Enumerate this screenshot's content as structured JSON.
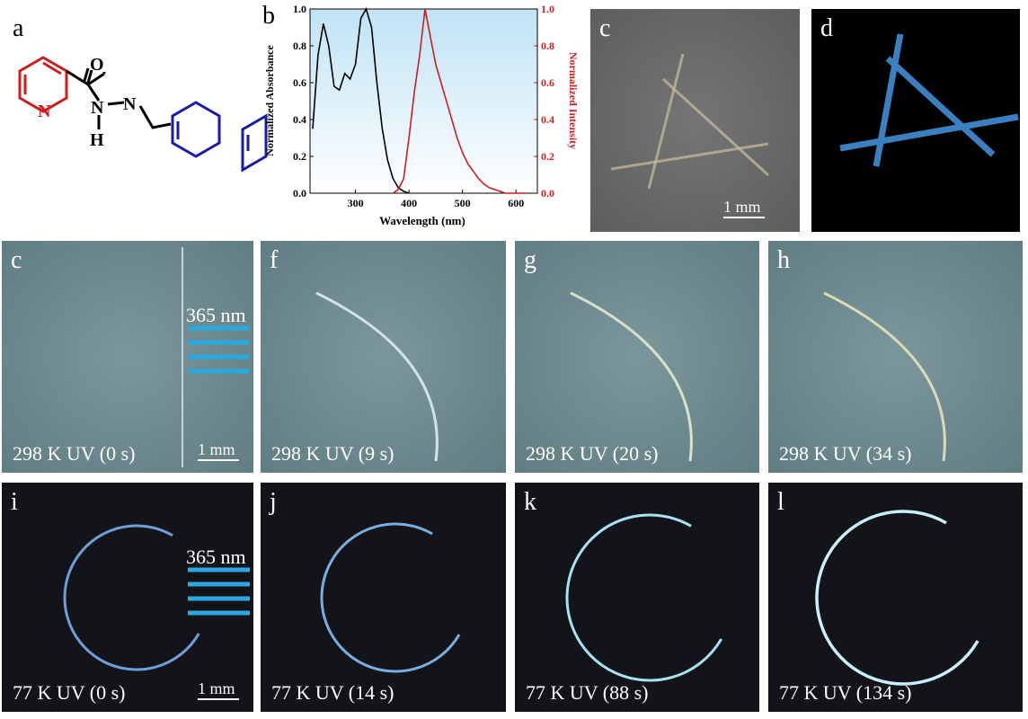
{
  "structure": {
    "label": "a",
    "atoms": [
      "N",
      "O",
      "N",
      "H",
      "N"
    ]
  },
  "chart_data": {
    "type": "line",
    "label": "b",
    "xlabel": "Wavelength (nm)",
    "ylabel": "Normalized Absorbance",
    "y2label": "Normalized Intensity",
    "x": [
      220,
      230,
      240,
      250,
      260,
      270,
      280,
      290,
      300,
      310,
      320,
      330,
      340,
      350,
      360,
      370,
      380,
      390,
      400,
      410,
      420,
      430,
      440,
      450,
      460,
      470,
      480,
      490,
      500,
      510,
      520,
      530,
      540,
      550,
      560,
      570,
      580,
      590,
      600,
      610,
      620
    ],
    "series": [
      {
        "color": "#000000",
        "values": [
          0.35,
          0.75,
          0.92,
          0.8,
          0.58,
          0.56,
          0.65,
          0.62,
          0.7,
          0.95,
          1.0,
          0.9,
          0.6,
          0.35,
          0.18,
          0.08,
          0.03,
          0.01,
          0,
          null,
          null,
          null,
          null,
          null,
          null,
          null,
          null,
          null,
          null,
          null,
          null,
          null,
          null,
          null,
          null,
          null,
          null,
          null,
          null,
          null,
          null
        ]
      },
      {
        "color": "#cc1f1f",
        "axis": "y2",
        "values": [
          null,
          null,
          null,
          null,
          null,
          null,
          null,
          null,
          null,
          null,
          null,
          null,
          null,
          null,
          null,
          0,
          0.02,
          0.08,
          0.3,
          0.55,
          0.75,
          1.0,
          0.85,
          0.7,
          0.6,
          0.5,
          0.4,
          0.3,
          0.22,
          0.16,
          0.12,
          0.08,
          0.05,
          0.03,
          0.02,
          0.01,
          0,
          0,
          0,
          0,
          0
        ]
      }
    ],
    "xlim": [
      215,
      640
    ],
    "xticks": [
      300,
      400,
      500,
      600
    ],
    "ylim": [
      0,
      1
    ],
    "yticks": [
      {
        "value": 0,
        "label": "0.0"
      },
      0.2,
      0.4,
      0.6,
      0.8,
      {
        "value": 1,
        "label": "1.0"
      }
    ],
    "y2lim": [
      0,
      1
    ],
    "y2ticks": [
      {
        "value": 0,
        "label": "0.0"
      },
      0.2,
      0.4,
      0.6,
      0.8,
      {
        "value": 1,
        "label": "1.0"
      }
    ]
  },
  "photos": [
    {
      "label": "c",
      "scale": "1 mm"
    },
    {
      "label": "d"
    },
    {
      "label": "c",
      "caption": "298 K UV (0 s)",
      "excitation": "365 nm",
      "scale": "1 mm"
    },
    {
      "label": "f",
      "caption": "298 K UV (9 s)"
    },
    {
      "label": "g",
      "caption": "298 K UV (20 s)"
    },
    {
      "label": "h",
      "caption": "298 K UV (34 s)"
    },
    {
      "label": "i",
      "caption": "77 K UV (0 s)",
      "excitation": "365 nm",
      "scale": "1 mm"
    },
    {
      "label": "j",
      "caption": "77 K UV (14 s)"
    },
    {
      "label": "k",
      "caption": "77 K UV (88 s)"
    },
    {
      "label": "l",
      "caption": "77 K UV (134 s)"
    }
  ]
}
